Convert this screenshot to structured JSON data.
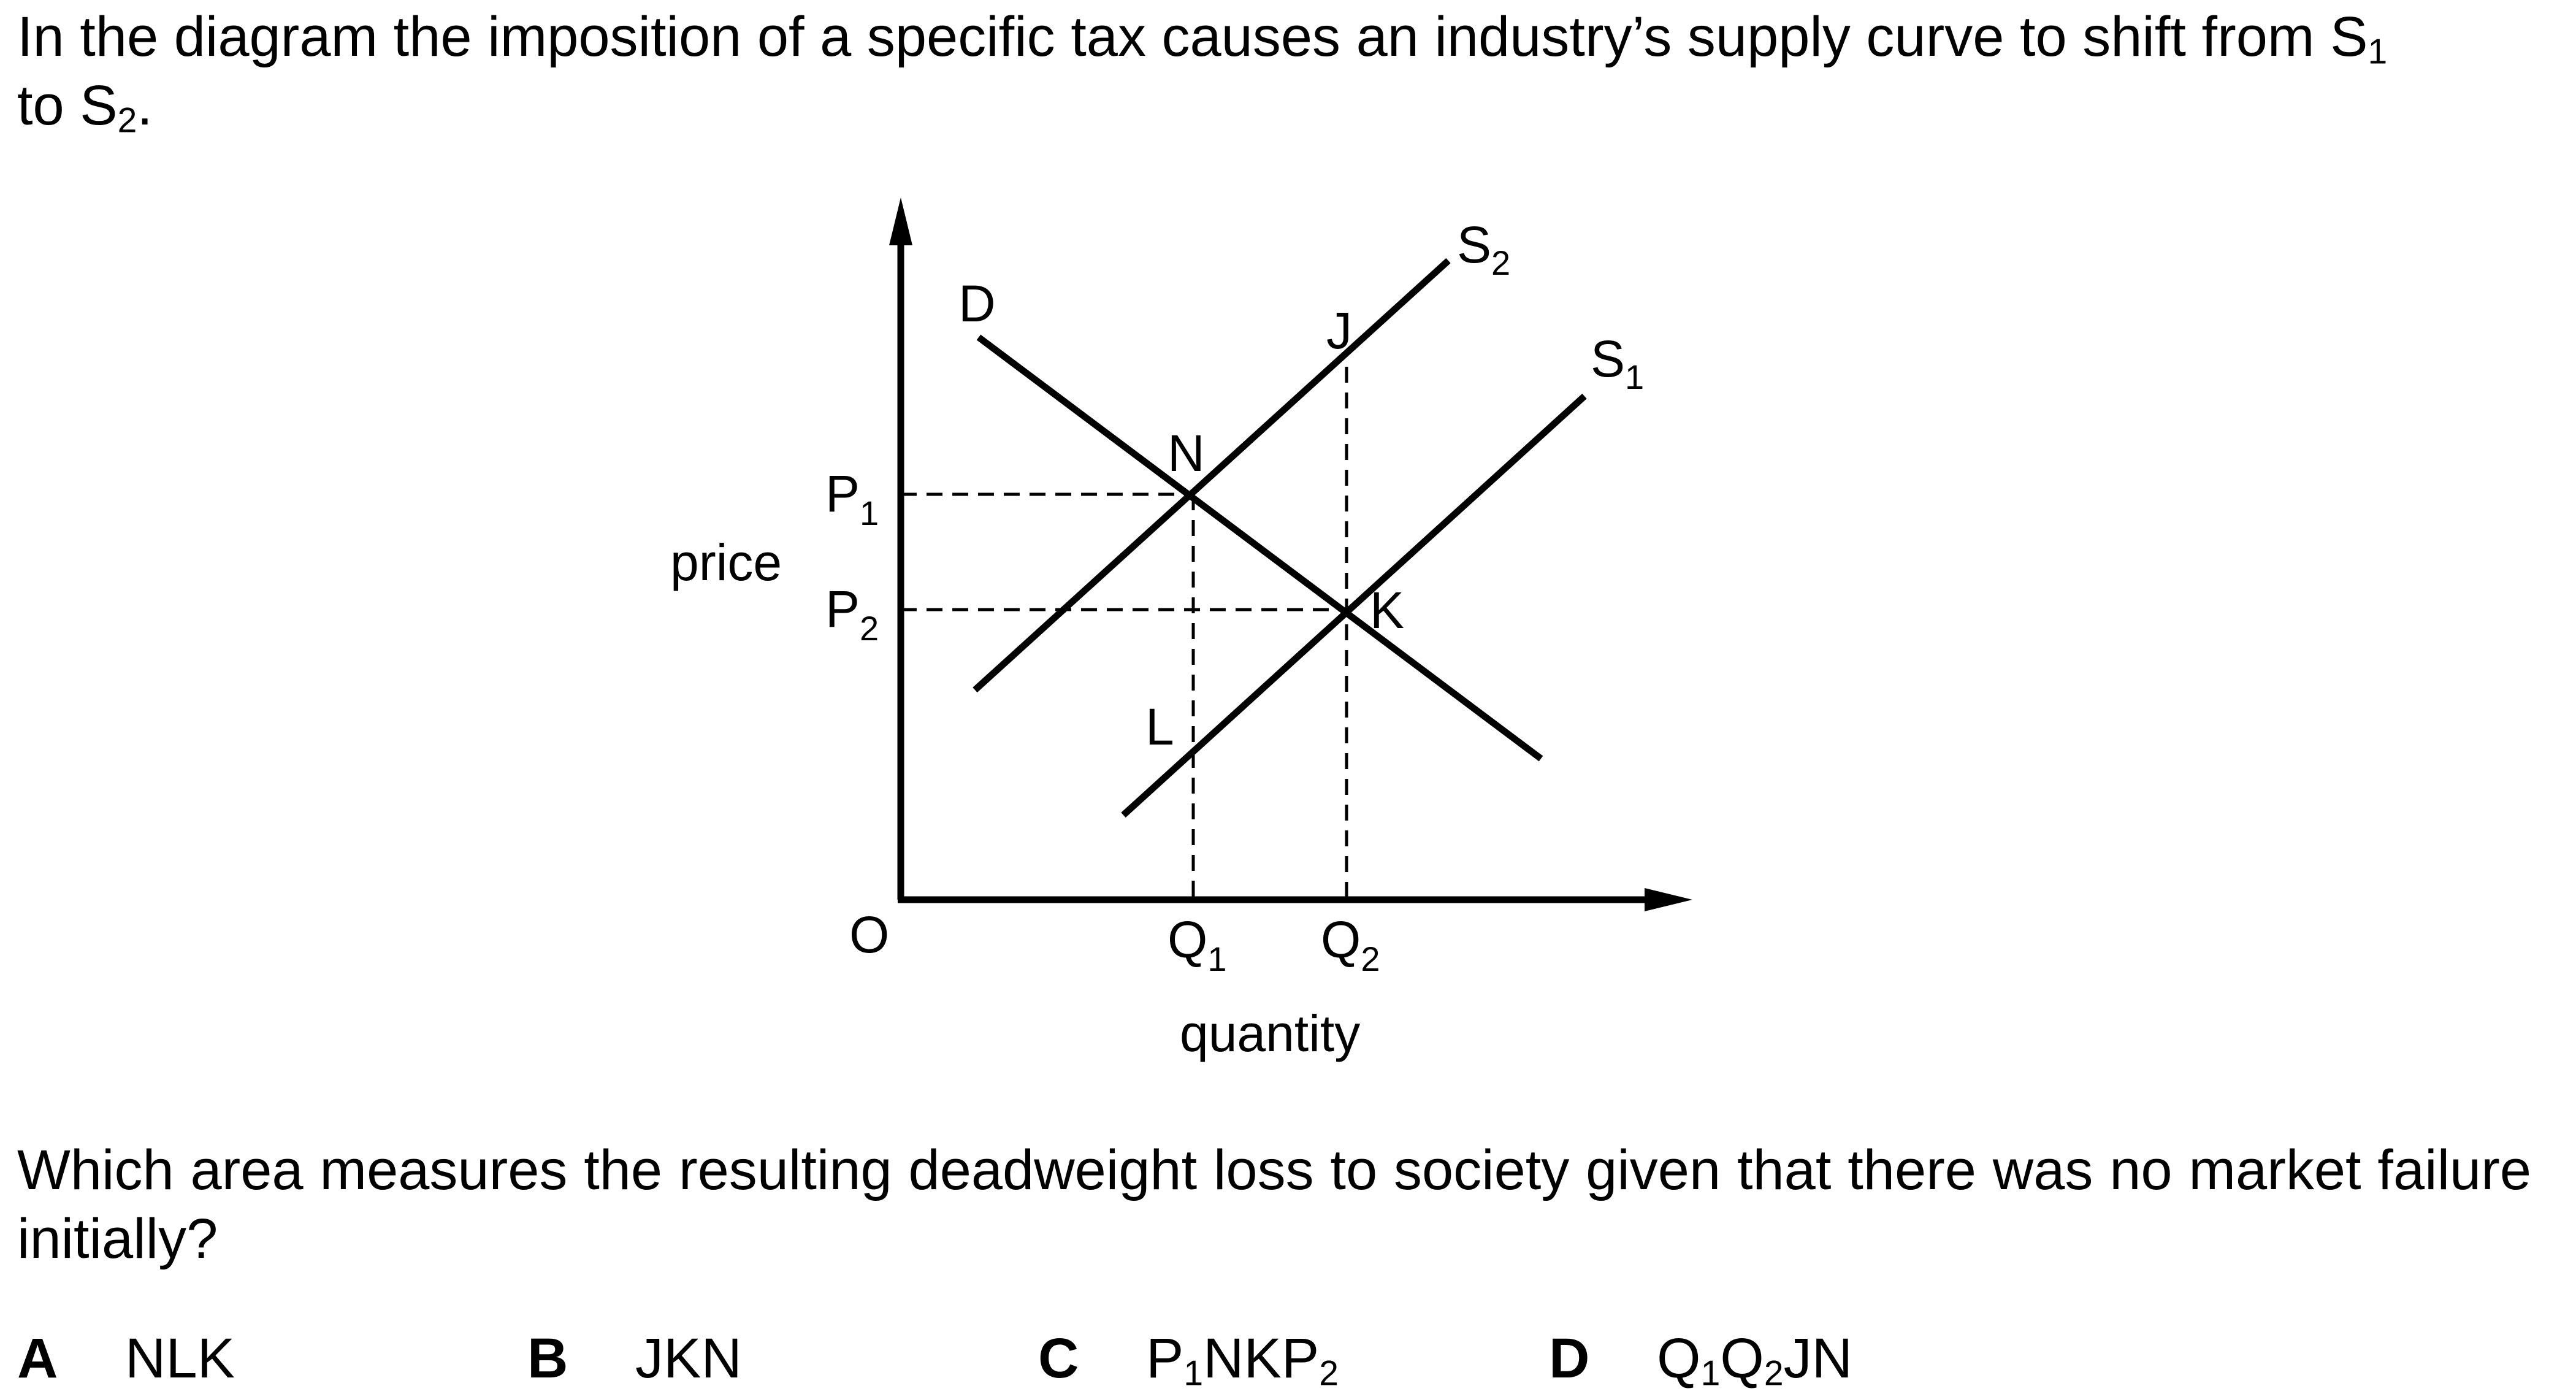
{
  "intro": {
    "part1": "In the diagram the imposition of a specific tax causes an industry’s supply curve to shift from S",
    "s1_sub": "1",
    "part2": "to S",
    "s2_sub": "2",
    "part3": "."
  },
  "diagram": {
    "y_axis_label": "price",
    "x_axis_label": "quantity",
    "origin_label": "O",
    "demand_label": "D",
    "s1_label": {
      "main": "S",
      "sub": "1"
    },
    "s2_label": {
      "main": "S",
      "sub": "2"
    },
    "p1_label": {
      "main": "P",
      "sub": "1"
    },
    "p2_label": {
      "main": "P",
      "sub": "2"
    },
    "q1_label": {
      "main": "Q",
      "sub": "1"
    },
    "q2_label": {
      "main": "Q",
      "sub": "2"
    },
    "point_j": "J",
    "point_n": "N",
    "point_k": "K",
    "point_l": "L"
  },
  "question": "Which area measures the resulting deadweight loss to society given that there was no market failure initially?",
  "options": [
    {
      "letter": "A",
      "text": "NLK"
    },
    {
      "letter": "B",
      "text": "JKN"
    },
    {
      "letter": "C",
      "parts": [
        "P",
        "1",
        "NKP",
        "2"
      ]
    },
    {
      "letter": "D",
      "parts": [
        "Q",
        "1",
        "Q",
        "2",
        "JN"
      ]
    }
  ]
}
